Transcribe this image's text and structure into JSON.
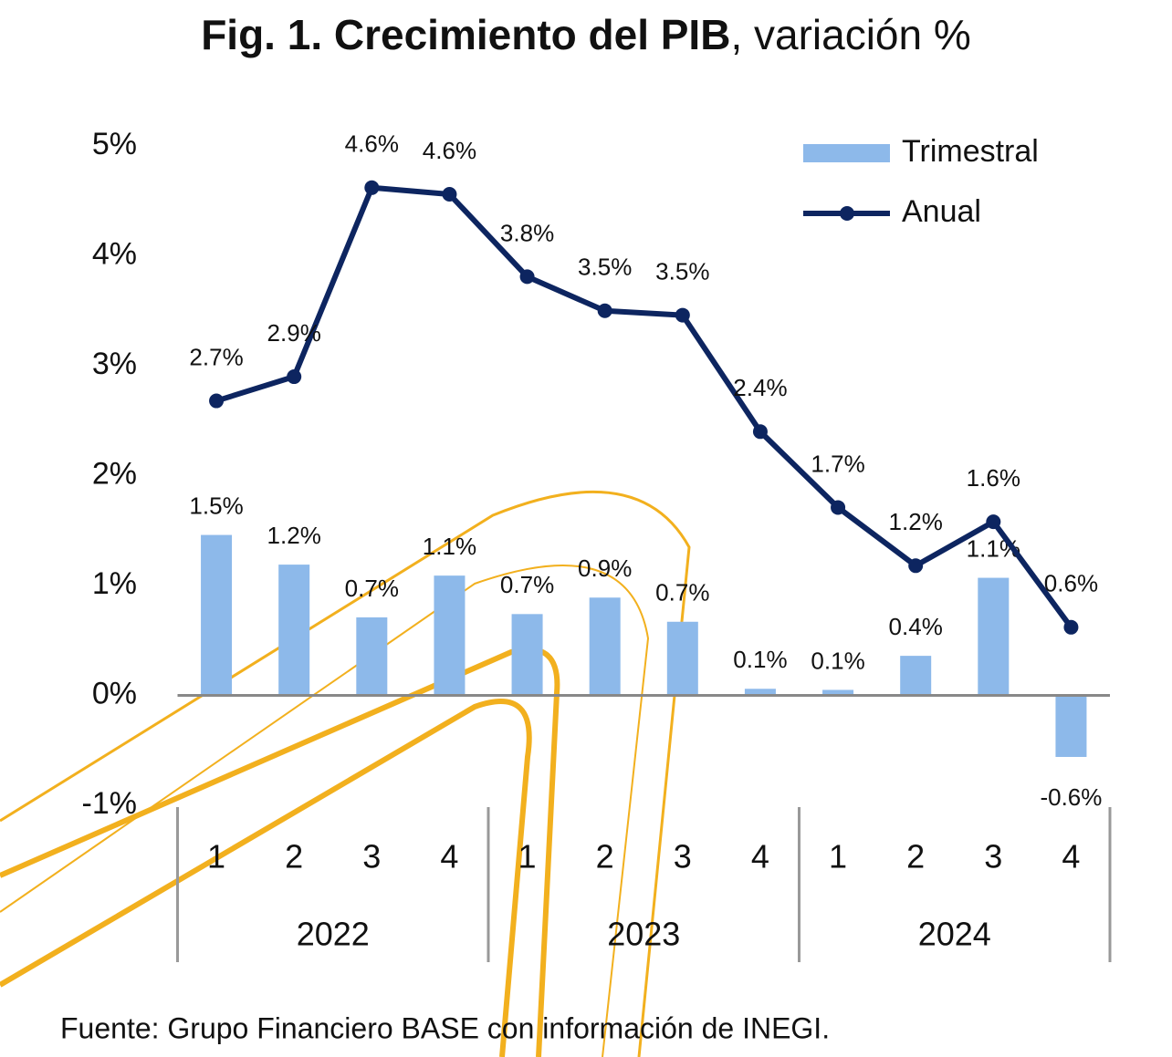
{
  "chart_data": {
    "type": "bar-line",
    "title": "Fig. 1. Crecimiento del PIB",
    "subtitle": ", variación %",
    "categories": [
      "1",
      "2",
      "3",
      "4",
      "1",
      "2",
      "3",
      "4",
      "1",
      "2",
      "3",
      "4"
    ],
    "groups": [
      "2022",
      "2023",
      "2024"
    ],
    "series": [
      {
        "name": "Trimestral",
        "type": "bar",
        "color": "#8DB9EA",
        "values": [
          1.46,
          1.19,
          0.71,
          1.09,
          0.74,
          0.89,
          0.67,
          0.06,
          0.05,
          0.36,
          1.07,
          -0.56
        ],
        "value_labels": [
          "1.5%",
          "1.2%",
          "0.7%",
          "1.1%",
          "0.7%",
          "0.9%",
          "0.7%",
          "0.1%",
          "0.1%",
          "0.4%",
          "1.1%",
          "-0.6%"
        ]
      },
      {
        "name": "Anual",
        "type": "line",
        "color": "#0D2560",
        "values": [
          2.68,
          2.9,
          4.62,
          4.56,
          3.81,
          3.5,
          3.46,
          2.4,
          1.71,
          1.18,
          1.58,
          0.62
        ],
        "value_labels": [
          "2.7%",
          "2.9%",
          "4.6%",
          "4.6%",
          "3.8%",
          "3.5%",
          "3.5%",
          "2.4%",
          "1.7%",
          "1.2%",
          "1.6%",
          "0.6%"
        ]
      }
    ],
    "ylim": [
      -1,
      5
    ],
    "yticks": [
      {
        "value": -1,
        "label": "-1%"
      },
      {
        "value": 0,
        "label": "0%"
      },
      {
        "value": 1,
        "label": "1%"
      },
      {
        "value": 2,
        "label": "2%"
      },
      {
        "value": 3,
        "label": "3%"
      },
      {
        "value": 4,
        "label": "4%"
      },
      {
        "value": 5,
        "label": "5%"
      }
    ],
    "legend": "top-right",
    "source": "Fuente: Grupo Financiero BASE con información de INEGI."
  }
}
